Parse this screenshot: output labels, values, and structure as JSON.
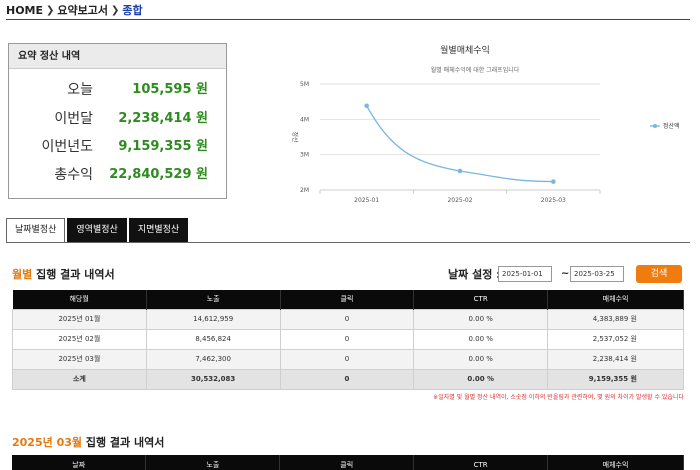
{
  "breadcrumb": {
    "home": "HOME",
    "sep": "❯",
    "level1": "요약보고서",
    "level2": "종합"
  },
  "summary": {
    "title": "요약 정산 내역",
    "rows": [
      {
        "label": "오늘",
        "value": "105,595 원"
      },
      {
        "label": "이번달",
        "value": "2,238,414 원"
      },
      {
        "label": "이번년도",
        "value": "9,159,355 원"
      },
      {
        "label": "총수익",
        "value": "22,840,529 원"
      }
    ]
  },
  "chart_data": {
    "type": "line",
    "title": "월별매체수익",
    "subtitle": "월별 매체수익에 대한 그래프입니다",
    "ylabel": "정산",
    "x": [
      "2025-01",
      "2025-02",
      "2025-03"
    ],
    "yticks": [
      "2M",
      "3M",
      "4M",
      "5M"
    ],
    "ylim": [
      2000000,
      5000000
    ],
    "grid": true,
    "legend": "right",
    "series": [
      {
        "name": "정산액",
        "color": "#7ab6e0",
        "values": [
          4383889,
          2537052,
          2238414
        ]
      }
    ]
  },
  "tabs": [
    {
      "label": "날짜별정산",
      "active": true
    },
    {
      "label": "영역별정산",
      "active": false
    },
    {
      "label": "지면별정산",
      "active": false
    }
  ],
  "section1": {
    "title_hl": "월별",
    "title_rest": " 집행 결과 내역서",
    "date_label": "날짜 설정 :",
    "date_from": "2025-01-01",
    "tilde": "~",
    "date_to": "2025-03-25",
    "search_label": "검색",
    "columns": [
      "해당월",
      "노출",
      "클릭",
      "CTR",
      "매체수익"
    ],
    "rows": [
      [
        "2025년 01월",
        "14,612,959",
        "0",
        "0.00 %",
        "4,383,889 원"
      ],
      [
        "2025년 02월",
        "8,456,824",
        "0",
        "0.00 %",
        "2,537,052 원"
      ],
      [
        "2025년 03월",
        "7,462,300",
        "0",
        "0.00 %",
        "2,238,414 원"
      ]
    ],
    "subtotal": [
      "소계",
      "30,532,083",
      "0",
      "0.00 %",
      "9,159,355 원"
    ],
    "note": "※일자별 및 월별 정산 내역이, 소숫점 이하의 반올림과 관련하여, 몇 원의 차이가 발생할 수 있습니다"
  },
  "section2": {
    "title_hl": "2025년  03월",
    "title_rest": " 집행 결과 내역서",
    "columns": [
      "날짜",
      "노출",
      "클릭",
      "CTR",
      "매체수익"
    ]
  },
  "colors": {
    "accent": "#e27a10",
    "value_green": "#2e8b1e",
    "breadcrumb_blue": "#1a3fa8"
  }
}
